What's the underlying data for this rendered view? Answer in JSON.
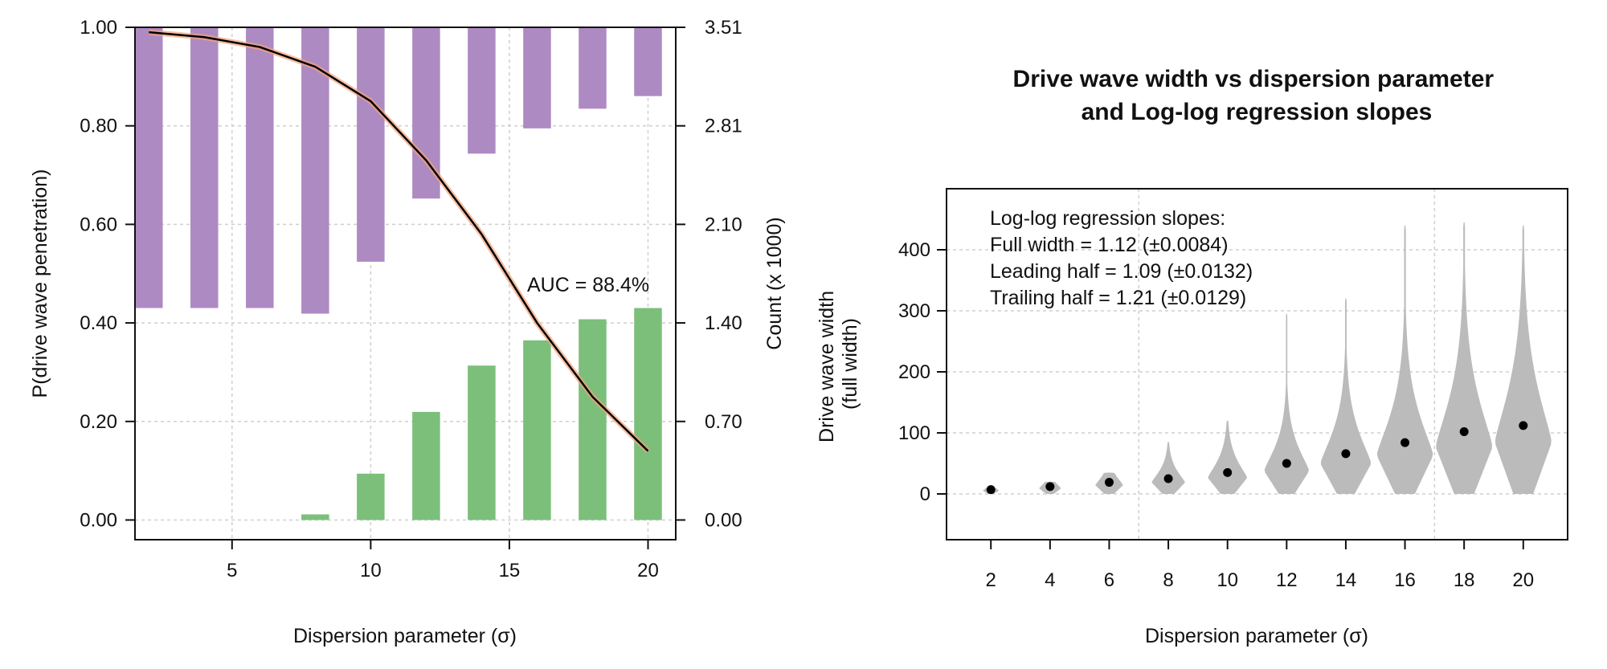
{
  "chart_data": [
    {
      "type": "bar+line",
      "xlabel": "Dispersion parameter (σ)",
      "ylabel": "P(drive wave penetration)",
      "ylabel_right": "Count (x 1000)",
      "xlim": [
        1.5,
        21
      ],
      "ylim": [
        -0.04,
        1.0
      ],
      "x_ticks": [
        "5",
        "10",
        "15",
        "20"
      ],
      "y_ticks": [
        "0.00",
        "0.20",
        "0.40",
        "0.60",
        "0.80",
        "1.00"
      ],
      "y2_ticks": [
        "0.00",
        "0.70",
        "1.40",
        "2.10",
        "2.81",
        "3.51"
      ],
      "grid": true,
      "x": [
        2,
        4,
        6,
        8,
        10,
        12,
        14,
        16,
        18,
        20
      ],
      "series": [
        {
          "color": "#7bbf7b",
          "values": [
            0.0,
            0.0,
            0.0,
            0.04,
            0.33,
            0.77,
            1.1,
            1.28,
            1.43,
            1.51
          ]
        },
        {
          "color": "#ae8ac2",
          "values": [
            1.51,
            1.51,
            1.51,
            1.47,
            1.84,
            2.29,
            2.61,
            2.79,
            2.93,
            3.02
          ]
        },
        {
          "color": "#000000",
          "values": [
            0.99,
            0.98,
            0.96,
            0.92,
            0.85,
            0.73,
            0.58,
            0.4,
            0.25,
            0.14
          ]
        }
      ],
      "annotation": "AUC = 88.4%"
    },
    {
      "type": "violin",
      "title": "Drive wave width vs dispersion parameter\nand Log-log regression slopes",
      "xlabel": "Dispersion parameter (σ)",
      "ylabel": "Drive wave width\n(full width)",
      "ylim": [
        -75,
        500
      ],
      "categories": [
        "2",
        "4",
        "6",
        "8",
        "10",
        "12",
        "14",
        "16",
        "18",
        "20"
      ],
      "y_ticks": [
        "0",
        "100",
        "200",
        "300",
        "400"
      ],
      "grid": true,
      "color": "#bbbbbb",
      "means": [
        7,
        12,
        19,
        25,
        35,
        50,
        66,
        84,
        102,
        112
      ],
      "max": [
        10,
        20,
        35,
        85,
        120,
        295,
        320,
        440,
        445,
        440
      ],
      "annotations": [
        "Log-log regression slopes:",
        "Full width = 1.12 (±0.0084)",
        "Leading half = 1.09 (±0.0132)",
        "Trailing half = 1.21 (±0.0129)"
      ]
    }
  ]
}
